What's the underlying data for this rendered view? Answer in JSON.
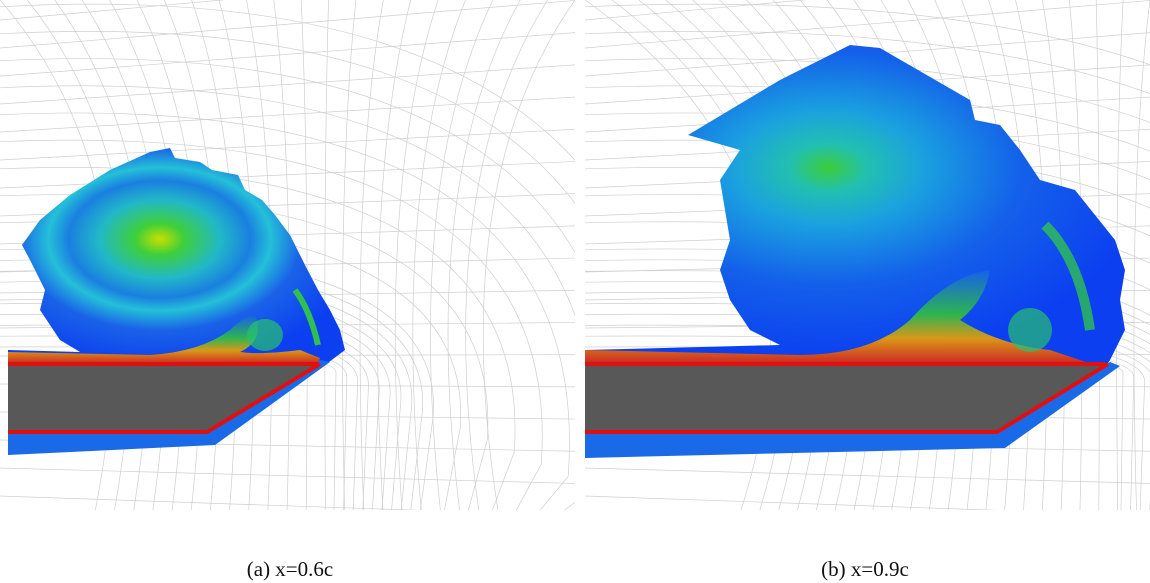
{
  "figure": {
    "panels": [
      {
        "caption": "(a) x=0.6c"
      },
      {
        "caption": "(b) x=0.9c"
      }
    ]
  }
}
